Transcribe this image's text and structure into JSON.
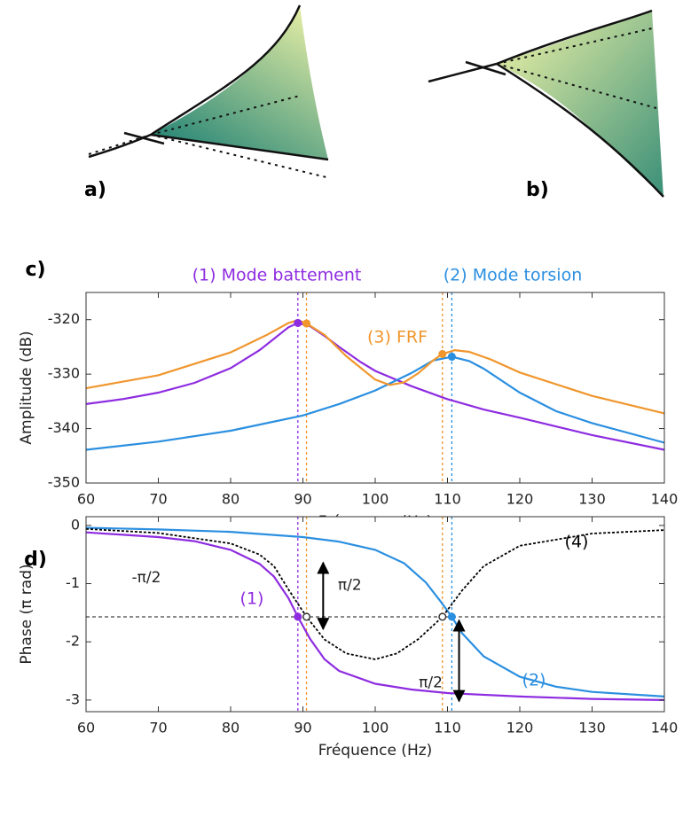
{
  "illustrations": [
    {
      "label": "a)"
    },
    {
      "label": "b)"
    }
  ],
  "chart_data": [
    {
      "type": "line",
      "panel": "c)",
      "xlabel": "Fréquence (Hz)",
      "ylabel": "Amplitude (dB)",
      "xlim": [
        60,
        140
      ],
      "xticks": [
        60,
        70,
        80,
        90,
        100,
        110,
        120,
        130,
        140
      ],
      "ylim": [
        -350,
        -315
      ],
      "yticks": [
        -350,
        -340,
        -330,
        -320
      ],
      "series": [
        {
          "name": "(1) Mode battement",
          "color": "#8e2ce0",
          "x": [
            60,
            65,
            70,
            75,
            80,
            84,
            86,
            88,
            89.3,
            91,
            93,
            95,
            98,
            100,
            105,
            110,
            115,
            120,
            130,
            140
          ],
          "values": [
            -335.5,
            -334.6,
            -333.4,
            -331.6,
            -328.9,
            -325.6,
            -323.5,
            -321.4,
            -320.6,
            -321.2,
            -323.0,
            -325.0,
            -327.8,
            -329.4,
            -332.2,
            -334.6,
            -336.5,
            -338.0,
            -341.2,
            -343.9
          ],
          "marker_x": [
            89.3
          ],
          "marker_y": [
            -320.6
          ]
        },
        {
          "name": "(2) Mode torsion",
          "color": "#2b8fe0",
          "x": [
            60,
            70,
            80,
            90,
            95,
            100,
            105,
            108,
            110.6,
            113,
            115,
            120,
            125,
            130,
            140
          ],
          "values": [
            -343.9,
            -342.4,
            -340.4,
            -337.6,
            -335.5,
            -333.0,
            -329.8,
            -327.5,
            -326.8,
            -327.6,
            -329.0,
            -333.4,
            -336.8,
            -339.0,
            -342.6
          ],
          "marker_x": [
            110.6
          ],
          "marker_y": [
            -326.8
          ]
        },
        {
          "name": "(3) FRF",
          "color": "#f0962d",
          "x": [
            60,
            70,
            80,
            85,
            88,
            89.3,
            90.5,
            93,
            96,
            100,
            102,
            104,
            106,
            108,
            109.3,
            111,
            113,
            116,
            120,
            130,
            140
          ],
          "values": [
            -332.6,
            -330.2,
            -326.0,
            -322.8,
            -320.6,
            -320.1,
            -320.7,
            -322.8,
            -326.7,
            -331.0,
            -332.0,
            -331.5,
            -329.8,
            -327.5,
            -326.3,
            -325.6,
            -325.9,
            -327.3,
            -329.7,
            -334.0,
            -337.2
          ],
          "marker_x": [
            90.5,
            109.3
          ],
          "marker_y": [
            -320.7,
            -326.3
          ]
        }
      ],
      "vlines": [
        {
          "x": 89.3,
          "color": "#8e2ce0"
        },
        {
          "x": 90.5,
          "color": "#f0962d"
        },
        {
          "x": 109.3,
          "color": "#f0962d"
        },
        {
          "x": 110.6,
          "color": "#2b8fe0"
        }
      ]
    },
    {
      "type": "line",
      "panel": "d)",
      "xlabel": "Fréquence (Hz)",
      "ylabel": "Phase (π rad)",
      "xlim": [
        60,
        140
      ],
      "xticks": [
        60,
        70,
        80,
        90,
        100,
        110,
        120,
        130,
        140
      ],
      "ylim": [
        -3.2,
        0.15
      ],
      "yticks": [
        -3,
        -2,
        -1,
        0
      ],
      "series": [
        {
          "name": "(1)",
          "color": "#8e2ce0",
          "x": [
            60,
            70,
            75,
            80,
            84,
            86,
            88,
            89.3,
            91,
            93,
            95,
            100,
            105,
            110,
            120,
            130,
            140
          ],
          "values": [
            -0.12,
            -0.2,
            -0.27,
            -0.42,
            -0.66,
            -0.88,
            -1.25,
            -1.57,
            -1.95,
            -2.3,
            -2.5,
            -2.72,
            -2.82,
            -2.88,
            -2.94,
            -2.98,
            -3.0
          ],
          "marker_x": [
            89.3
          ],
          "marker_y": [
            -1.57
          ]
        },
        {
          "name": "(2)",
          "color": "#2b8fe0",
          "x": [
            60,
            70,
            80,
            90,
            95,
            100,
            104,
            107,
            109,
            110.6,
            112,
            115,
            120,
            125,
            130,
            140
          ],
          "values": [
            -0.04,
            -0.07,
            -0.11,
            -0.2,
            -0.28,
            -0.42,
            -0.65,
            -0.98,
            -1.3,
            -1.57,
            -1.85,
            -2.25,
            -2.6,
            -2.77,
            -2.86,
            -2.94
          ],
          "marker_x": [
            110.6
          ],
          "marker_y": [
            -1.57
          ]
        },
        {
          "name": "(4)",
          "color": "#000000",
          "dash": true,
          "marker_hollow": true,
          "x": [
            60,
            70,
            80,
            84,
            86,
            88,
            90.5,
            93,
            96,
            100,
            103,
            106,
            109.3,
            112,
            115,
            120,
            130,
            140
          ],
          "values": [
            -0.06,
            -0.13,
            -0.31,
            -0.5,
            -0.7,
            -1.1,
            -1.57,
            -1.96,
            -2.2,
            -2.3,
            -2.2,
            -1.95,
            -1.57,
            -1.12,
            -0.7,
            -0.35,
            -0.14,
            -0.08
          ],
          "marker_x": [
            90.5,
            109.3
          ],
          "marker_y": [
            -1.57,
            -1.57
          ]
        }
      ],
      "vlines": [
        {
          "x": 89.3,
          "color": "#8e2ce0"
        },
        {
          "x": 90.5,
          "color": "#f0962d"
        },
        {
          "x": 109.3,
          "color": "#f0962d"
        },
        {
          "x": 110.6,
          "color": "#2b8fe0"
        }
      ],
      "hline": {
        "y": -1.5708,
        "label": "-π/2"
      },
      "annotations": [
        {
          "text": "π/2",
          "x": 92.8,
          "y1": -0.64,
          "y2": -1.78
        },
        {
          "text": "π/2",
          "x": 111.6,
          "y1": -1.63,
          "y2": -3.02
        }
      ]
    }
  ]
}
